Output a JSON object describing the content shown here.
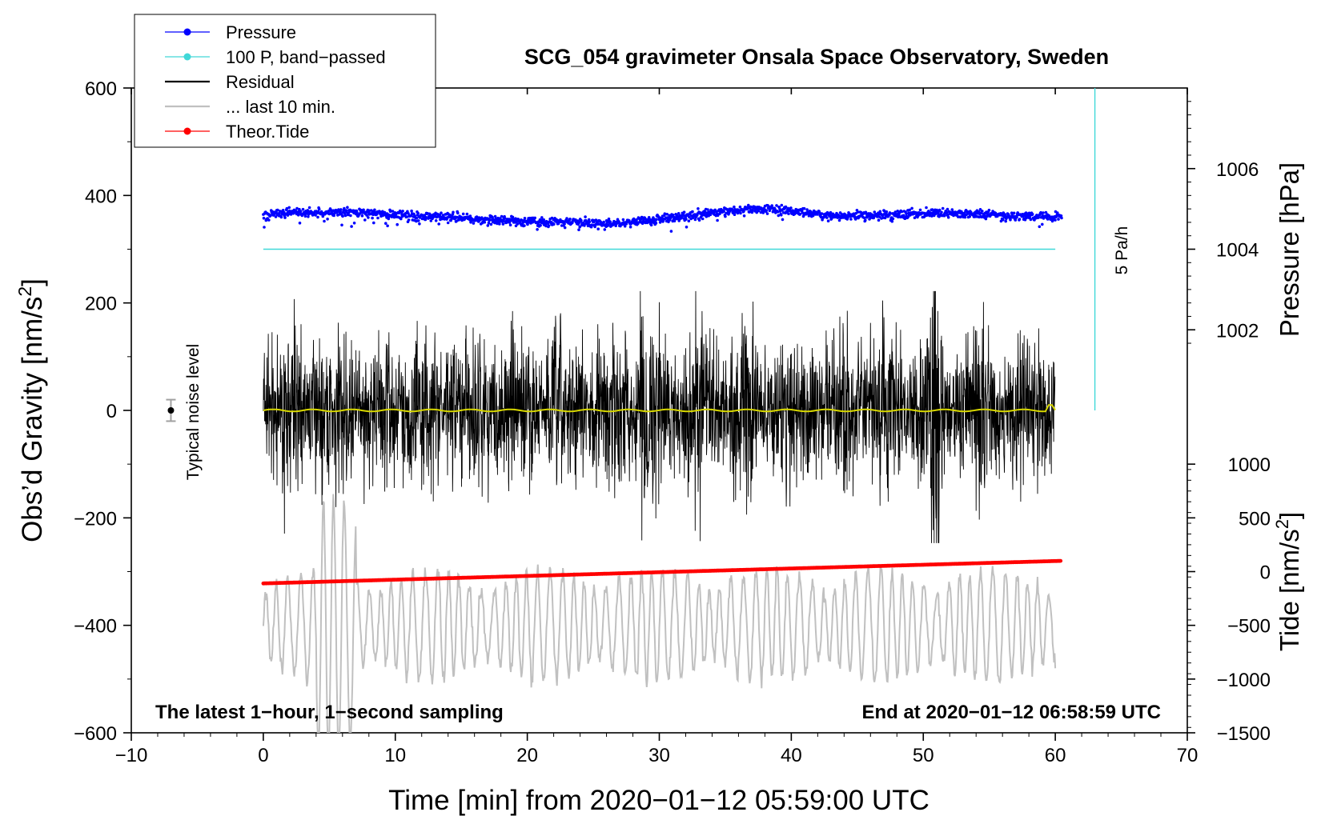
{
  "chart_data": {
    "type": "line",
    "title": "SCG_054 gravimeter Onsala Space Observatory, Sweden",
    "xlabel": "Time [min] from 2020−01−12 05:59:00 UTC",
    "ylabel": "Obs’d Gravity [nm/s²]",
    "ylabel_right_pressure": "Pressure [hPa]",
    "ylabel_right_tide": "Tide [nm/s²]",
    "xlim": [
      -10,
      70
    ],
    "ylim": [
      -600,
      600
    ],
    "x_ticks": [
      "−10",
      "0",
      "10",
      "20",
      "30",
      "40",
      "50",
      "60",
      "70"
    ],
    "x_tick_values": [
      -10,
      0,
      10,
      20,
      30,
      40,
      50,
      60,
      70
    ],
    "y_ticks": [
      "600",
      "400",
      "200",
      "0",
      "−200",
      "−400",
      "−600"
    ],
    "y_tick_values": [
      600,
      400,
      200,
      0,
      -200,
      -400,
      -600
    ],
    "pressure_axis": {
      "ticks": [
        "1006",
        "1004",
        "1002"
      ],
      "values": [
        1006,
        1004,
        1002
      ],
      "gravity_at": [
        450,
        300,
        150
      ]
    },
    "tide_axis": {
      "ticks": [
        "1000",
        "500",
        "0",
        "−500",
        "−1000",
        "−1500"
      ],
      "values": [
        1000,
        500,
        0,
        -500,
        -1000,
        -1500
      ],
      "gravity_at": [
        -100,
        -200,
        -300,
        -400,
        -500,
        -600
      ]
    },
    "legend": [
      {
        "label": "Pressure",
        "color": "#0000ff",
        "marker": "dot"
      },
      {
        "label": "100 P, band−passed",
        "color": "#40d8d8",
        "marker": "dot"
      },
      {
        "label": "Residual",
        "color": "#000000",
        "marker": "line"
      },
      {
        "label": "... last 10 min.",
        "color": "#c0c0c0",
        "marker": "line"
      },
      {
        "label": "Theor.Tide",
        "color": "#ff0000",
        "marker": "dot"
      }
    ],
    "annotations": {
      "bottom_left": "The latest 1−hour, 1−second sampling",
      "bottom_right": "End at 2020−01−12 06:58:59 UTC",
      "noise_label": "Typical noise level",
      "rate_label": "5 Pa/h"
    },
    "series": [
      {
        "name": "Pressure",
        "color": "#0000ff",
        "x": [
          0,
          2,
          4,
          6,
          8,
          10,
          12,
          14,
          16,
          18,
          20,
          22,
          24,
          26,
          28,
          30,
          32,
          34,
          36,
          38,
          40,
          42,
          44,
          46,
          48,
          50,
          52,
          54,
          56,
          58,
          60.5
        ],
        "y": [
          362,
          369,
          366,
          370,
          367,
          364,
          362,
          360,
          356,
          354,
          352,
          351,
          349,
          347,
          352,
          356,
          362,
          368,
          373,
          375,
          371,
          364,
          362,
          363,
          365,
          367,
          367,
          365,
          362,
          361,
          361
        ]
      },
      {
        "name": "100 P, band−passed",
        "color": "#40d8d8",
        "x": [
          0,
          60
        ],
        "y": [
          300,
          300
        ]
      },
      {
        "name": "Residual",
        "color": "#000000",
        "x_range": [
          0,
          60
        ],
        "typical_amplitude": 80,
        "max": 222,
        "min": -247
      },
      {
        "name": "... last 10 min.",
        "color": "#c0c0c0",
        "x_range": [
          0,
          60
        ],
        "center": -400,
        "typical_amplitude": 80
      },
      {
        "name": "Theor.Tide",
        "color": "#ff0000",
        "x": [
          0,
          60.5
        ],
        "y": [
          -322,
          -280
        ]
      }
    ],
    "noise_level": {
      "x": -7,
      "y": 0,
      "error": 20
    },
    "rate_bar": {
      "x": 63,
      "y_from": 0,
      "y_to": 600
    }
  }
}
